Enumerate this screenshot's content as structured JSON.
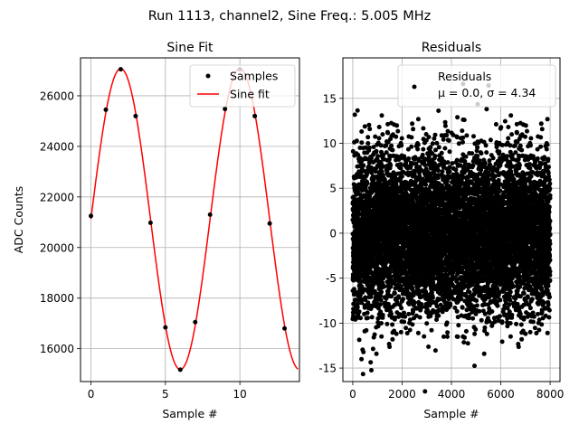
{
  "suptitle": "Run 1113, channel2, Sine Freq.: 5.005 MHz",
  "chart_data": [
    {
      "type": "line",
      "title": "Sine Fit",
      "xlabel": "Sample #",
      "ylabel": "ADC Counts",
      "xlim": [
        -0.7,
        14.0
      ],
      "ylim": [
        14700,
        27500
      ],
      "xticks": [
        0,
        5,
        10
      ],
      "yticks": [
        16000,
        18000,
        20000,
        22000,
        24000,
        26000
      ],
      "grid": true,
      "legend_position": "upper right",
      "series": [
        {
          "name": "Samples",
          "kind": "scatter",
          "color": "#000000",
          "x": [
            0,
            1,
            2,
            3,
            4,
            5,
            6,
            7,
            8,
            9,
            10,
            11,
            12,
            13
          ],
          "y": [
            21250,
            25450,
            27050,
            25200,
            20980,
            16840,
            15170,
            17050,
            21300,
            25480,
            27050,
            25200,
            20950,
            16800
          ]
        },
        {
          "name": "Sine fit",
          "kind": "line",
          "color": "#ff0000",
          "model": {
            "offset": 21125,
            "amplitude": 5950,
            "period_samples": 8.0,
            "phase_rad": 0.0
          },
          "x_range": [
            0,
            13.9
          ]
        }
      ]
    },
    {
      "type": "scatter",
      "title": "Residuals",
      "xlabel": "Sample #",
      "ylabel": "",
      "xlim": [
        -400,
        8400
      ],
      "ylim": [
        -16.5,
        19.5
      ],
      "xticks": [
        0,
        2000,
        4000,
        6000,
        8000
      ],
      "yticks": [
        -15,
        -10,
        -5,
        0,
        5,
        10,
        15
      ],
      "grid": true,
      "legend_position": "upper right",
      "legend_label": "Residuals",
      "legend_stats": "μ = 0.0, σ = 4.34",
      "series": [
        {
          "name": "Residuals",
          "color": "#000000",
          "n_points": 8000,
          "x_range": [
            0,
            8000
          ],
          "mean": 0.0,
          "std": 4.34,
          "max_abs": 17.6
        }
      ]
    }
  ]
}
